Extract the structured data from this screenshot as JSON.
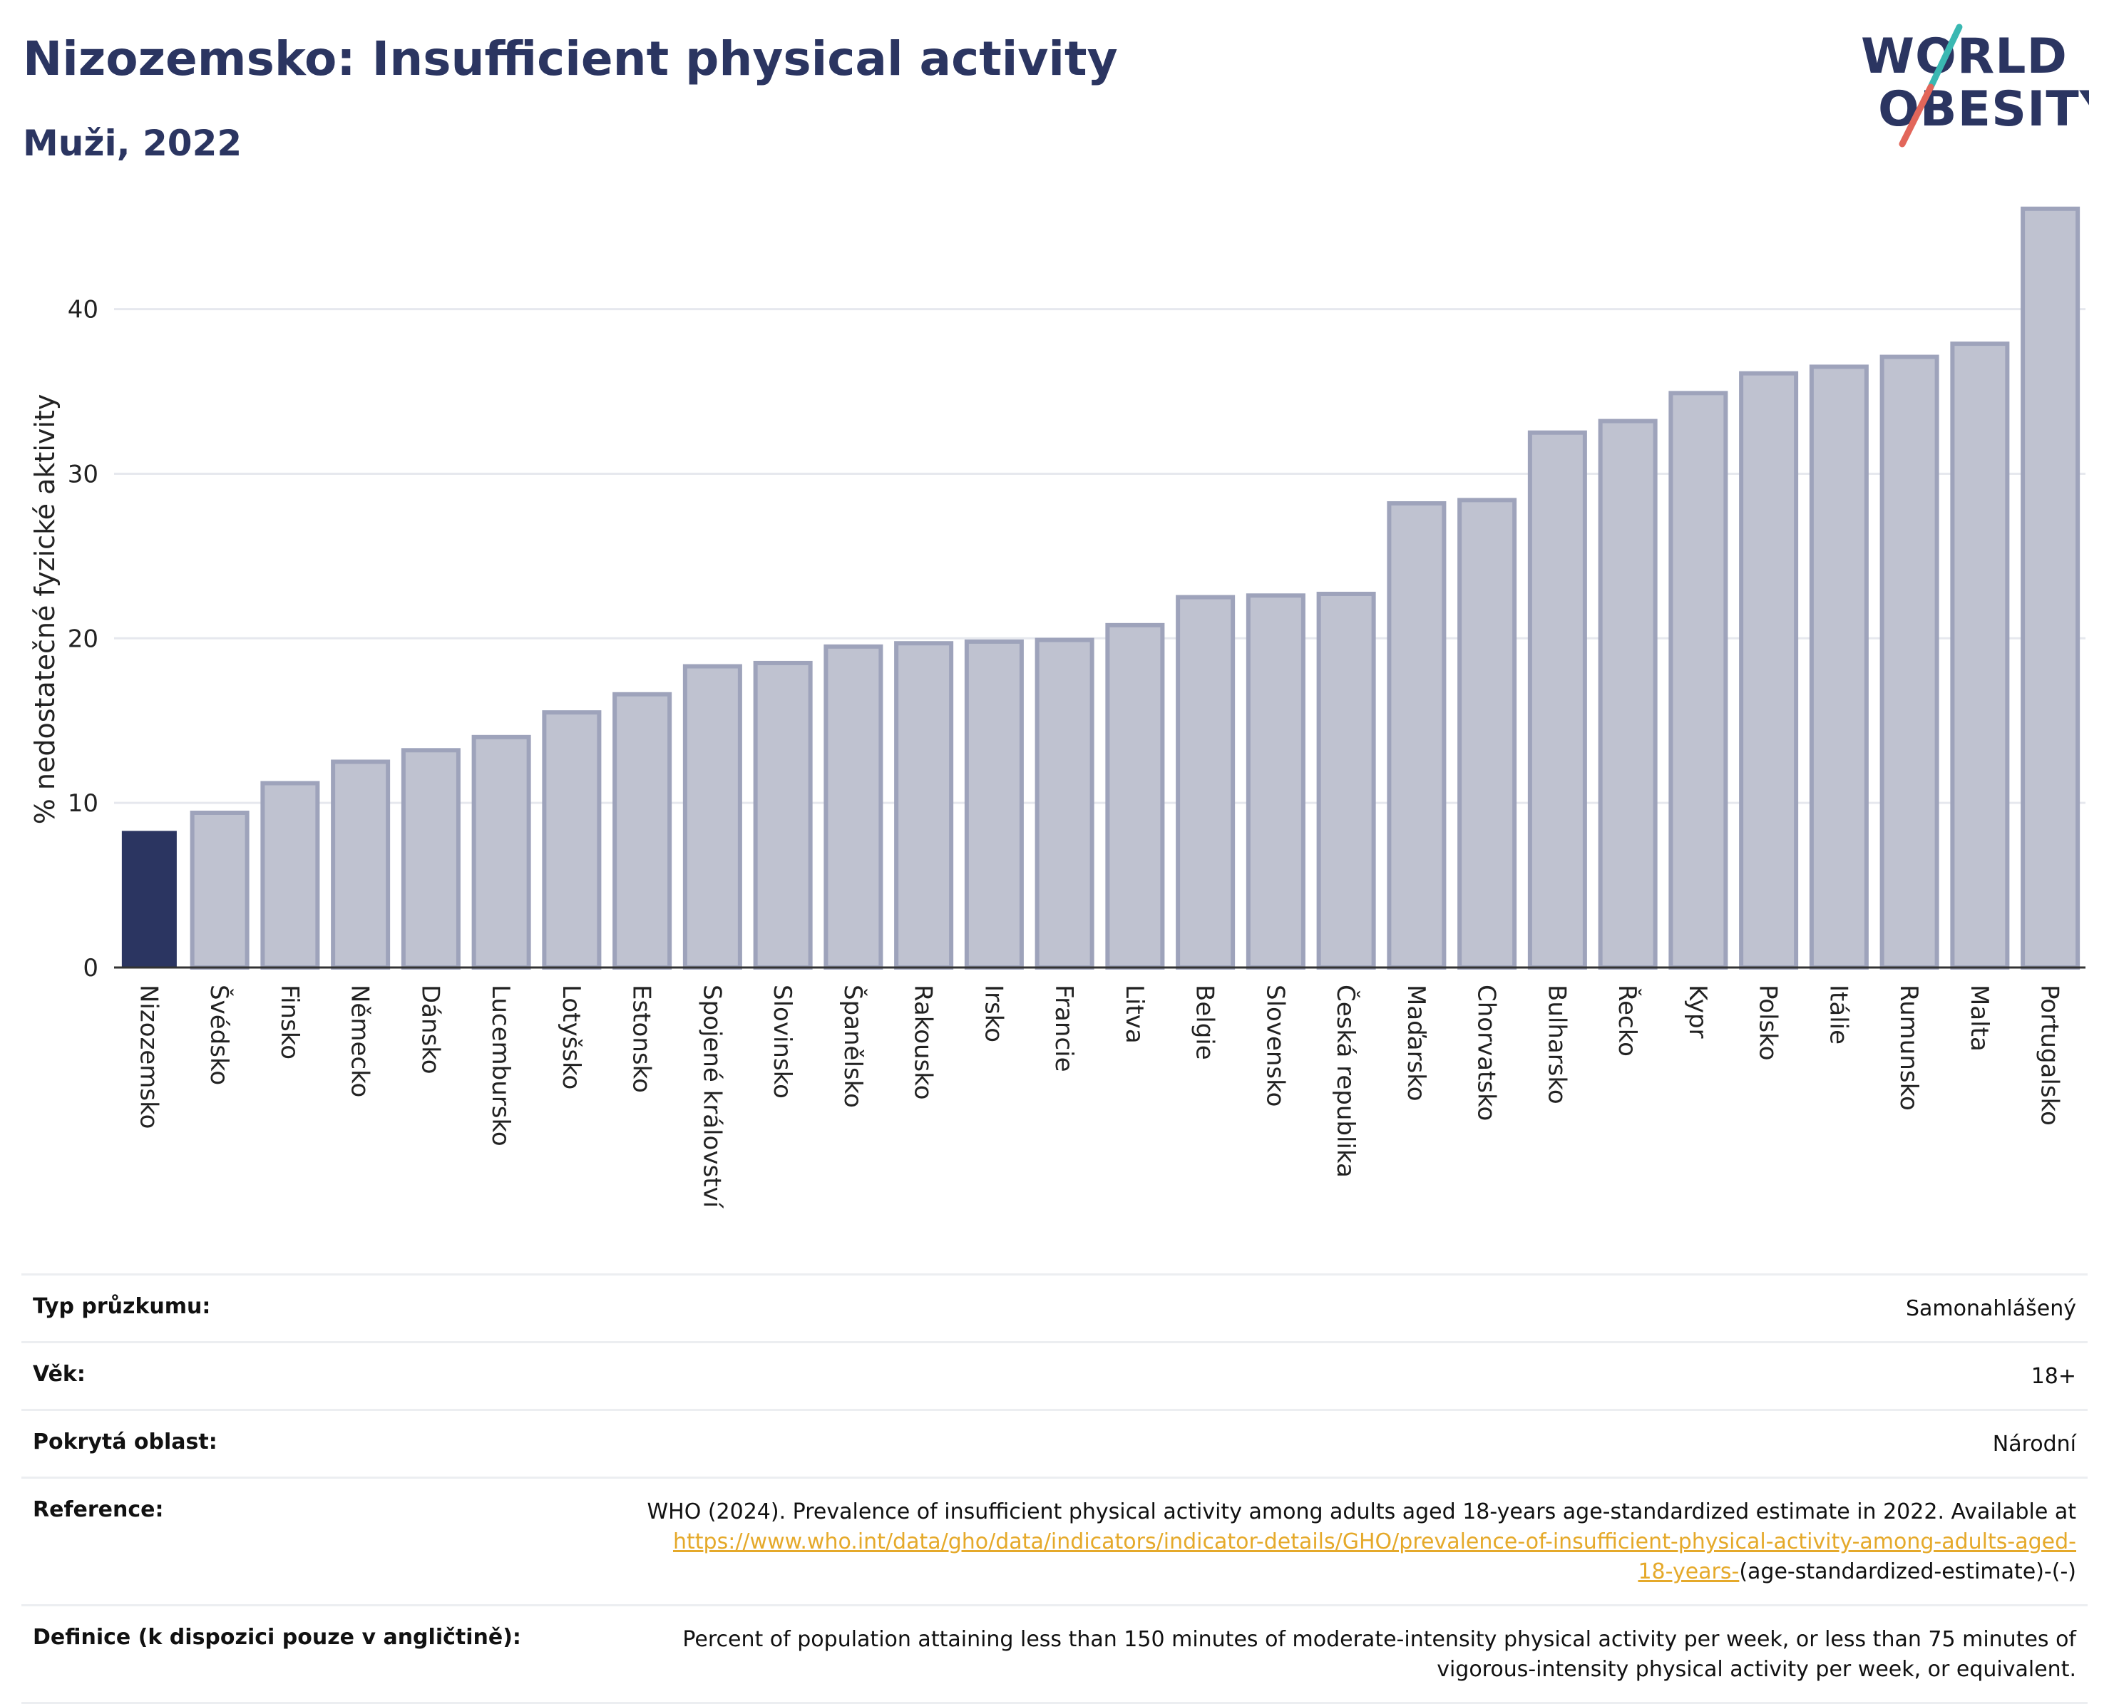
{
  "header": {
    "title": "Nizozemsko: Insufficient physical activity",
    "subtitle": "Muži, 2022"
  },
  "logo": {
    "line1": "WORLD",
    "line2": "OBESITY",
    "accent_colors": [
      "#3ab8b2",
      "#e2665a"
    ]
  },
  "chart_data": {
    "type": "bar",
    "ylabel": "% nedostatečné fyzické aktivity",
    "ylim": [
      0,
      47
    ],
    "yticks": [
      0,
      10,
      20,
      30,
      40
    ],
    "grid": true,
    "highlight_color": "#2b3561",
    "bar_color": "#bfc2d0",
    "bar_edge_color": "#9ea3bb",
    "categories": [
      "Nizozemsko",
      "Švédsko",
      "Finsko",
      "Německo",
      "Dánsko",
      "Lucembursko",
      "Lotyšsko",
      "Estonsko",
      "Spojené království",
      "Slovinsko",
      "Španělsko",
      "Rakousko",
      "Irsko",
      "Francie",
      "Litva",
      "Belgie",
      "Slovensko",
      "Česká republika",
      "Maďarsko",
      "Chorvatsko",
      "Bulharsko",
      "Řecko",
      "Kypr",
      "Polsko",
      "Itálie",
      "Rumunsko",
      "Malta",
      "Portugalsko"
    ],
    "values": [
      8.3,
      9.4,
      11.2,
      12.5,
      13.2,
      14.0,
      15.5,
      16.6,
      18.3,
      18.5,
      19.5,
      19.7,
      19.8,
      19.9,
      20.8,
      22.5,
      22.6,
      22.7,
      28.2,
      28.4,
      32.5,
      33.2,
      34.9,
      36.1,
      36.5,
      37.1,
      37.9,
      46.1
    ],
    "highlight": "Nizozemsko"
  },
  "info": {
    "survey_label": "Typ průzkumu:",
    "survey_value": "Samonahlášený",
    "age_label": "Věk:",
    "age_value": "18+",
    "area_label": "Pokrytá oblast:",
    "area_value": "Národní",
    "ref_label": "Reference:",
    "ref_text": "WHO (2024). Prevalence of insufficient physical activity among adults aged 18-years age-standardized estimate in 2022. Available at",
    "ref_link_1": "https://www.who.int/data/gho/data/indicators/indicator-details/GHO/prevalence-of-insufficient-physical-activity-among-adults-aged-",
    "ref_link_2": "18-years-",
    "ref_suffix": "(age-standardized-estimate)-(-)",
    "def_label": "Definice (k dispozici pouze v angličtině):",
    "def_text_1": "Percent of population attaining less than 150 minutes of moderate-intensity physical activity per week, or less than 75 minutes of",
    "def_text_2": "vigorous-intensity physical activity per week, or equivalent."
  }
}
